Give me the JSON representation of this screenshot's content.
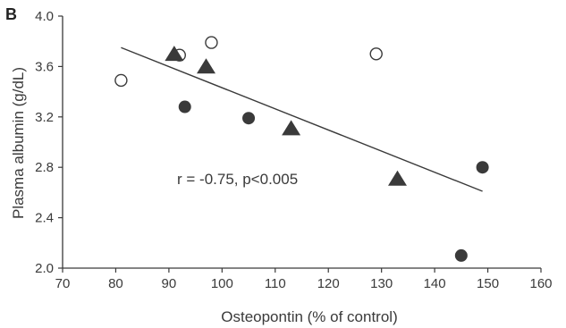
{
  "panel_label": "B",
  "chart_data": {
    "type": "scatter",
    "title": "",
    "xlabel": "Osteopontin (% of control)",
    "ylabel": "Plasma albumin (g/dL)",
    "xlim": [
      70,
      160
    ],
    "ylim": [
      2.0,
      4.0
    ],
    "xticks": [
      "70",
      "80",
      "90",
      "100",
      "110",
      "120",
      "130",
      "140",
      "150",
      "160"
    ],
    "yticks": [
      "2.0",
      "2.4",
      "2.8",
      "3.2",
      "3.6",
      "4.0"
    ],
    "annotation": "r = -0.75, p<0.005",
    "grid": false,
    "series": [
      {
        "marker": "open-circle",
        "color": "#3a3a3a",
        "points": [
          [
            81,
            3.49
          ],
          [
            92,
            3.69
          ],
          [
            98,
            3.79
          ],
          [
            129,
            3.7
          ]
        ]
      },
      {
        "marker": "filled-circle",
        "color": "#3a3a3a",
        "points": [
          [
            93,
            3.28
          ],
          [
            105,
            3.19
          ],
          [
            145,
            2.1
          ],
          [
            149,
            2.8
          ]
        ]
      },
      {
        "marker": "filled-triangle",
        "color": "#3a3a3a",
        "points": [
          [
            91,
            3.69
          ],
          [
            97,
            3.59
          ],
          [
            113,
            3.1
          ],
          [
            133,
            2.7
          ]
        ]
      }
    ],
    "fit_line": {
      "x": [
        81,
        149
      ],
      "y": [
        3.75,
        2.61
      ]
    }
  }
}
